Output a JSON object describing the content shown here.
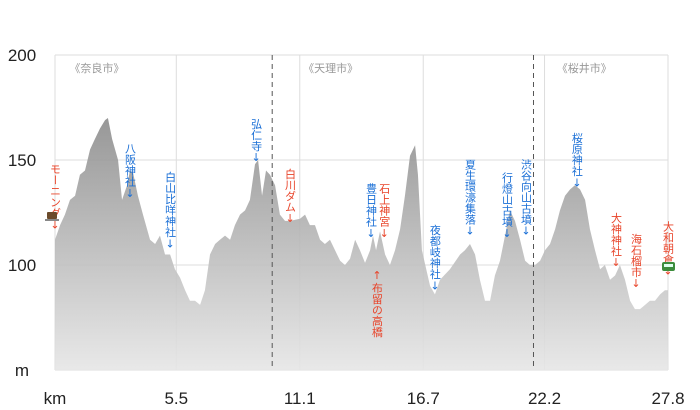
{
  "chart_data": {
    "type": "area",
    "x": [
      0,
      0.23,
      0.45,
      0.68,
      0.91,
      1.13,
      1.36,
      1.59,
      1.81,
      2.04,
      2.27,
      2.4,
      2.59,
      2.86,
      3.04,
      3.27,
      3.4,
      3.54,
      3.76,
      3.99,
      4.31,
      4.54,
      4.76,
      4.99,
      5.22,
      5.44,
      5.67,
      5.9,
      6.12,
      6.35,
      6.58,
      6.8,
      7.03,
      7.26,
      7.48,
      7.71,
      7.94,
      8.16,
      8.39,
      8.62,
      8.84,
      9.07,
      9.21,
      9.39,
      9.57,
      9.75,
      9.98,
      10.2,
      10.43,
      10.66,
      11.11,
      11.34,
      11.56,
      11.79,
      12.02,
      12.24,
      12.47,
      12.7,
      12.93,
      13.15,
      13.38,
      13.61,
      13.83,
      14.06,
      14.29,
      14.42,
      14.56,
      14.74,
      14.97,
      15.19,
      15.42,
      15.65,
      15.87,
      16.1,
      16.33,
      16.46,
      16.64,
      17.01,
      17.23,
      17.46,
      17.91,
      18.37,
      18.59,
      18.82,
      19.05,
      19.27,
      19.5,
      19.73,
      19.95,
      20.18,
      20.41,
      20.63,
      20.86,
      21.09,
      21.32,
      21.54,
      21.77,
      22.0,
      22.22,
      22.45,
      22.68,
      22.9,
      23.13,
      23.36,
      23.58,
      23.81,
      24.04,
      24.26,
      24.49,
      24.72,
      24.94,
      25.17,
      25.4,
      25.62,
      25.85,
      26.08,
      26.3,
      26.53,
      26.76,
      26.98,
      27.21,
      27.44,
      27.66,
      27.8
    ],
    "values": [
      112,
      119,
      124,
      131,
      133,
      143,
      145,
      155,
      160,
      165,
      169,
      170,
      160,
      150,
      131,
      138,
      145,
      144,
      133,
      124,
      112,
      110,
      114,
      105,
      105,
      98,
      94,
      88,
      83,
      83,
      81,
      88,
      105,
      110,
      112,
      114,
      112,
      119,
      124,
      126,
      131,
      148,
      150,
      133,
      145,
      143,
      138,
      124,
      121,
      121,
      122,
      124,
      119,
      119,
      112,
      110,
      112,
      107,
      102,
      100,
      103,
      112,
      107,
      101,
      107,
      114,
      107,
      116,
      105,
      100,
      107,
      117,
      133,
      152,
      157,
      143,
      107,
      90,
      86,
      93,
      98,
      105,
      107,
      110,
      105,
      93,
      83,
      83,
      95,
      102,
      114,
      126,
      121,
      112,
      102,
      100,
      100,
      102,
      107,
      110,
      117,
      126,
      133,
      136,
      138,
      136,
      131,
      117,
      107,
      98,
      100,
      93,
      95,
      100,
      93,
      83,
      79,
      79,
      81,
      83,
      83,
      86,
      88,
      88
    ],
    "xlim": [
      0,
      27.8
    ],
    "ylim": [
      50,
      200
    ],
    "xticks": [
      {
        "value": 0,
        "label": "km"
      },
      5.5,
      11.1,
      16.7,
      22.2,
      27.8
    ],
    "yticks": [
      {
        "value": 50,
        "label": "m"
      },
      100,
      150,
      200
    ],
    "grid": true,
    "dividers": [
      9.85,
      21.7
    ],
    "regions": [
      {
        "name": "《奈良市》",
        "x": 1.9
      },
      {
        "name": "《天理市》",
        "x": 12.5
      },
      {
        "name": "《桜井市》",
        "x": 24.0
      }
    ],
    "annotations": [
      {
        "text": "モーニング↓",
        "x": 0,
        "y": 116,
        "color": "#e8442a"
      },
      {
        "text": "八阪神社↓",
        "x": 3.4,
        "y": 131,
        "color": "#1a6fd6"
      },
      {
        "text": "白山比咩神社↓",
        "x": 5.22,
        "y": 107,
        "color": "#1a6fd6"
      },
      {
        "text": "弘仁寺↓",
        "x": 9.12,
        "y": 148,
        "color": "#1a6fd6"
      },
      {
        "text": "白川ダム↓",
        "x": 10.66,
        "y": 119,
        "color": "#e8442a"
      },
      {
        "text": "豊日神社↓",
        "x": 14.33,
        "y": 112,
        "color": "#1a6fd6"
      },
      {
        "text": "石上神宮↓",
        "x": 14.93,
        "y": 112,
        "color": "#e8442a"
      },
      {
        "text": "↑布留の高橋",
        "x": 14.6,
        "y": 98,
        "color": "#e8442a"
      },
      {
        "text": "夜都岐神社↓",
        "x": 17.23,
        "y": 87,
        "color": "#1a6fd6"
      },
      {
        "text": "夏生環濠集落↓",
        "x": 18.82,
        "y": 113,
        "color": "#1a6fd6"
      },
      {
        "text": "行燈山古墳↓",
        "x": 20.5,
        "y": 112,
        "color": "#1a6fd6"
      },
      {
        "text": "渋谷向山古墳↓",
        "x": 21.36,
        "y": 113,
        "color": "#1a6fd6"
      },
      {
        "text": "桜原神社↓",
        "x": 23.67,
        "y": 136,
        "color": "#1a6fd6"
      },
      {
        "text": "大神神社↓",
        "x": 25.44,
        "y": 98,
        "color": "#e8442a"
      },
      {
        "text": "海石榴市↓",
        "x": 26.35,
        "y": 88,
        "color": "#e8442a"
      },
      {
        "text": "大和朝倉↓",
        "x": 27.8,
        "y": 94,
        "color": "#e8442a"
      }
    ]
  }
}
